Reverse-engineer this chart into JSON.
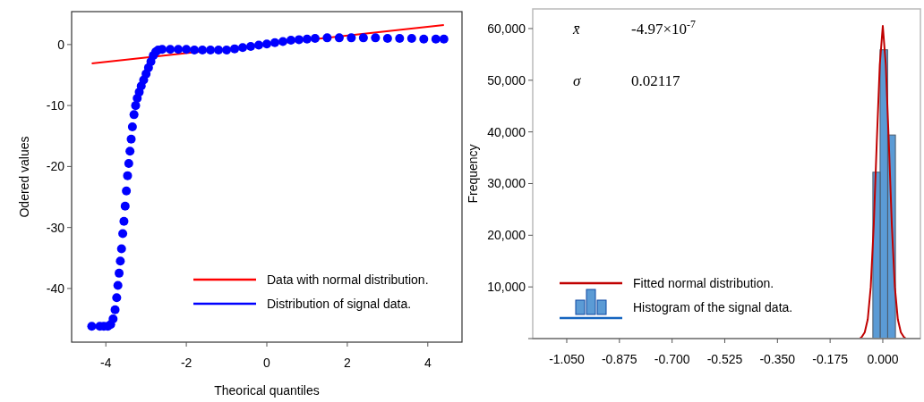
{
  "chart_data": [
    {
      "type": "scatter",
      "xlabel": "Theorical quantiles",
      "ylabel": "Odered values",
      "xlim": [
        -4.85,
        4.85
      ],
      "ylim": [
        -48.8,
        5.4
      ],
      "xticks": [
        -4,
        -2,
        0,
        2,
        4
      ],
      "yticks": [
        -40,
        -30,
        -20,
        -10,
        0
      ],
      "grid": false,
      "legend": "bottom right",
      "series": [
        {
          "type": "line",
          "name": "Data with normal  distribution.",
          "color": "#ff0000",
          "x": [
            -4.35,
            4.4
          ],
          "values": [
            -3.1,
            3.2
          ]
        },
        {
          "type": "scatter",
          "name": "Distribution of signal data.",
          "color": "#0000ff",
          "marker": "circle",
          "x": [
            -4.35,
            -4.15,
            -4.05,
            -3.95,
            -3.88,
            -3.82,
            -3.77,
            -3.73,
            -3.7,
            -3.67,
            -3.64,
            -3.61,
            -3.58,
            -3.55,
            -3.52,
            -3.49,
            -3.46,
            -3.43,
            -3.4,
            -3.37,
            -3.34,
            -3.3,
            -3.26,
            -3.22,
            -3.17,
            -3.12,
            -3.06,
            -3,
            -2.94,
            -2.88,
            -2.82,
            -2.76,
            -2.7,
            -2.6,
            -2.4,
            -2.2,
            -2,
            -1.8,
            -1.6,
            -1.4,
            -1.2,
            -1,
            -0.8,
            -0.6,
            -0.4,
            -0.2,
            0,
            0.2,
            0.4,
            0.6,
            0.8,
            1,
            1.2,
            1.5,
            1.8,
            2.1,
            2.4,
            2.7,
            3,
            3.3,
            3.6,
            3.9,
            4.2,
            4.4
          ],
          "values": [
            -46.2,
            -46.2,
            -46.2,
            -46.2,
            -45.9,
            -45,
            -43.5,
            -41.5,
            -39.5,
            -37.5,
            -35.5,
            -33.5,
            -31,
            -29,
            -26.5,
            -24,
            -21.5,
            -19.5,
            -17.5,
            -15.5,
            -13.5,
            -11.5,
            -10,
            -8.8,
            -7.8,
            -6.8,
            -5.8,
            -4.8,
            -3.8,
            -2.8,
            -1.8,
            -1.2,
            -0.9,
            -0.8,
            -0.8,
            -0.8,
            -0.8,
            -0.9,
            -0.9,
            -0.9,
            -0.9,
            -0.9,
            -0.7,
            -0.5,
            -0.3,
            -0.1,
            0.1,
            0.3,
            0.5,
            0.7,
            0.8,
            0.9,
            1,
            1.1,
            1.1,
            1.1,
            1.1,
            1.1,
            1.0,
            1.0,
            1.0,
            0.9,
            0.9,
            0.9
          ]
        }
      ]
    },
    {
      "type": "histogram",
      "ylabel": "Frequency",
      "xlim": [
        -1.163,
        0.125
      ],
      "ylim": [
        0,
        63800
      ],
      "grid": false,
      "legend": "bottom left",
      "xticks": [
        {
          "value": -1.05,
          "label": "-1.050"
        },
        {
          "value": -0.875,
          "label": "-0.875"
        },
        {
          "value": -0.7,
          "label": "-0.700"
        },
        {
          "value": -0.525,
          "label": "-0.525"
        },
        {
          "value": -0.35,
          "label": "-0.350"
        },
        {
          "value": -0.175,
          "label": "-0.175"
        },
        {
          "value": 0,
          "label": "0.000"
        }
      ],
      "yticks": [
        {
          "value": 0,
          "label": null
        },
        {
          "value": 10000,
          "label": "10,000"
        },
        {
          "value": 20000,
          "label": "20,000"
        },
        {
          "value": 30000,
          "label": "30,000"
        },
        {
          "value": 40000,
          "label": "40,000"
        },
        {
          "value": 50000,
          "label": "50,000"
        },
        {
          "value": 60000,
          "label": "60,000"
        }
      ],
      "annotations": [
        "x̄",
        "-4.97×10$^{-7}$",
        "σ",
        "0.02117"
      ],
      "series": [
        {
          "type": "line",
          "name": "Fitted normal distribution.",
          "color": "#c00000",
          "x": [
            -0.077,
            -0.07,
            -0.06,
            -0.05,
            -0.04,
            -0.03,
            -0.02,
            -0.01,
            0,
            0.01,
            0.02,
            0.03,
            0.04,
            0.05,
            0.06,
            0.07,
            0.077
          ],
          "values": [
            0,
            300,
            1200,
            3700,
            10000,
            22000,
            38000,
            53000,
            60500,
            53000,
            38000,
            22000,
            10000,
            3700,
            1200,
            300,
            0
          ]
        },
        {
          "type": "histogram",
          "name": "Histogram of the signal data.",
          "color": "#5b9bd5",
          "bins": [
            -0.033,
            -0.009,
            0.016,
            0.042
          ],
          "values": [
            32200,
            55900,
            39400
          ]
        }
      ]
    }
  ]
}
